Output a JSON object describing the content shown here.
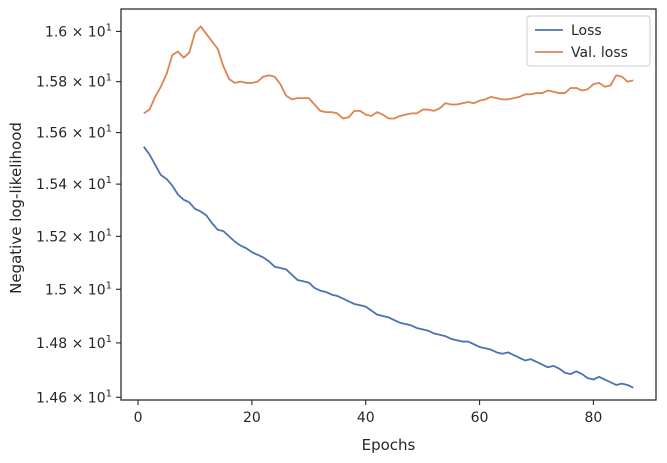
{
  "chart_data": {
    "type": "line",
    "xlabel": "Epochs",
    "ylabel": "Negative log-likelihood",
    "xlim": [
      -3,
      91
    ],
    "ylim": [
      14.59,
      16.09
    ],
    "y_scale": "log",
    "x_ticks": [
      0,
      20,
      40,
      60,
      80
    ],
    "x_tick_labels": [
      "0",
      "20",
      "40",
      "60",
      "80"
    ],
    "y_ticks": [
      14.6,
      14.8,
      15.0,
      15.2,
      15.4,
      15.6,
      15.8,
      16.0
    ],
    "y_tick_labels": [
      {
        "mantissa": "1.46",
        "exp": "1"
      },
      {
        "mantissa": "1.48",
        "exp": "1"
      },
      {
        "mantissa": "1.5",
        "exp": "1"
      },
      {
        "mantissa": "1.52",
        "exp": "1"
      },
      {
        "mantissa": "1.54",
        "exp": "1"
      },
      {
        "mantissa": "1.56",
        "exp": "1"
      },
      {
        "mantissa": "1.58",
        "exp": "1"
      },
      {
        "mantissa": "1.6",
        "exp": "1"
      }
    ],
    "grid": false,
    "legend_position": "top-right",
    "series": [
      {
        "name": "Loss",
        "color": "#4c72b0",
        "x": [
          1,
          2,
          3,
          4,
          5,
          6,
          7,
          8,
          9,
          10,
          11,
          12,
          13,
          14,
          15,
          16,
          17,
          18,
          19,
          20,
          21,
          22,
          23,
          24,
          25,
          26,
          27,
          28,
          29,
          30,
          31,
          32,
          33,
          34,
          35,
          36,
          37,
          38,
          39,
          40,
          41,
          42,
          43,
          44,
          45,
          46,
          47,
          48,
          49,
          50,
          51,
          52,
          53,
          54,
          55,
          56,
          57,
          58,
          59,
          60,
          61,
          62,
          63,
          64,
          65,
          66,
          67,
          68,
          69,
          70,
          71,
          72,
          73,
          74,
          75,
          76,
          77,
          78,
          79,
          80,
          81,
          82,
          83,
          84,
          85,
          86,
          87
        ],
        "values": [
          15.545,
          15.515,
          15.475,
          15.435,
          15.42,
          15.395,
          15.36,
          15.34,
          15.33,
          15.305,
          15.295,
          15.28,
          15.25,
          15.225,
          15.22,
          15.2,
          15.18,
          15.165,
          15.155,
          15.14,
          15.13,
          15.12,
          15.105,
          15.085,
          15.08,
          15.075,
          15.055,
          15.035,
          15.03,
          15.025,
          15.005,
          14.995,
          14.99,
          14.98,
          14.975,
          14.965,
          14.955,
          14.945,
          14.94,
          14.935,
          14.92,
          14.905,
          14.9,
          14.895,
          14.885,
          14.875,
          14.87,
          14.865,
          14.855,
          14.85,
          14.845,
          14.835,
          14.83,
          14.825,
          14.815,
          14.81,
          14.805,
          14.805,
          14.795,
          14.785,
          14.78,
          14.775,
          14.765,
          14.76,
          14.765,
          14.755,
          14.745,
          14.735,
          14.74,
          14.73,
          14.72,
          14.71,
          14.715,
          14.705,
          14.69,
          14.685,
          14.695,
          14.685,
          14.67,
          14.665,
          14.675,
          14.665,
          14.655,
          14.645,
          14.65,
          14.645,
          14.635
        ]
      },
      {
        "name": "Val. loss",
        "color": "#dd8452",
        "x": [
          1,
          2,
          3,
          4,
          5,
          6,
          7,
          8,
          9,
          10,
          11,
          12,
          13,
          14,
          15,
          16,
          17,
          18,
          19,
          20,
          21,
          22,
          23,
          24,
          25,
          26,
          27,
          28,
          29,
          30,
          31,
          32,
          33,
          34,
          35,
          36,
          37,
          38,
          39,
          40,
          41,
          42,
          43,
          44,
          45,
          46,
          47,
          48,
          49,
          50,
          51,
          52,
          53,
          54,
          55,
          56,
          57,
          58,
          59,
          60,
          61,
          62,
          63,
          64,
          65,
          66,
          67,
          68,
          69,
          70,
          71,
          72,
          73,
          74,
          75,
          76,
          77,
          78,
          79,
          80,
          81,
          82,
          83,
          84,
          85,
          86,
          87
        ],
        "values": [
          15.675,
          15.69,
          15.74,
          15.78,
          15.83,
          15.905,
          15.92,
          15.895,
          15.915,
          15.995,
          16.02,
          15.99,
          15.96,
          15.93,
          15.86,
          15.81,
          15.795,
          15.8,
          15.795,
          15.795,
          15.8,
          15.82,
          15.825,
          15.82,
          15.79,
          15.745,
          15.73,
          15.735,
          15.735,
          15.735,
          15.71,
          15.685,
          15.68,
          15.68,
          15.675,
          15.655,
          15.66,
          15.685,
          15.685,
          15.67,
          15.665,
          15.68,
          15.67,
          15.655,
          15.655,
          15.665,
          15.67,
          15.675,
          15.675,
          15.69,
          15.69,
          15.685,
          15.695,
          15.715,
          15.71,
          15.71,
          15.715,
          15.72,
          15.715,
          15.725,
          15.73,
          15.74,
          15.735,
          15.73,
          15.73,
          15.735,
          15.74,
          15.75,
          15.75,
          15.755,
          15.755,
          15.765,
          15.76,
          15.755,
          15.755,
          15.775,
          15.775,
          15.765,
          15.77,
          15.79,
          15.795,
          15.78,
          15.785,
          15.825,
          15.82,
          15.8,
          15.805
        ]
      }
    ]
  }
}
